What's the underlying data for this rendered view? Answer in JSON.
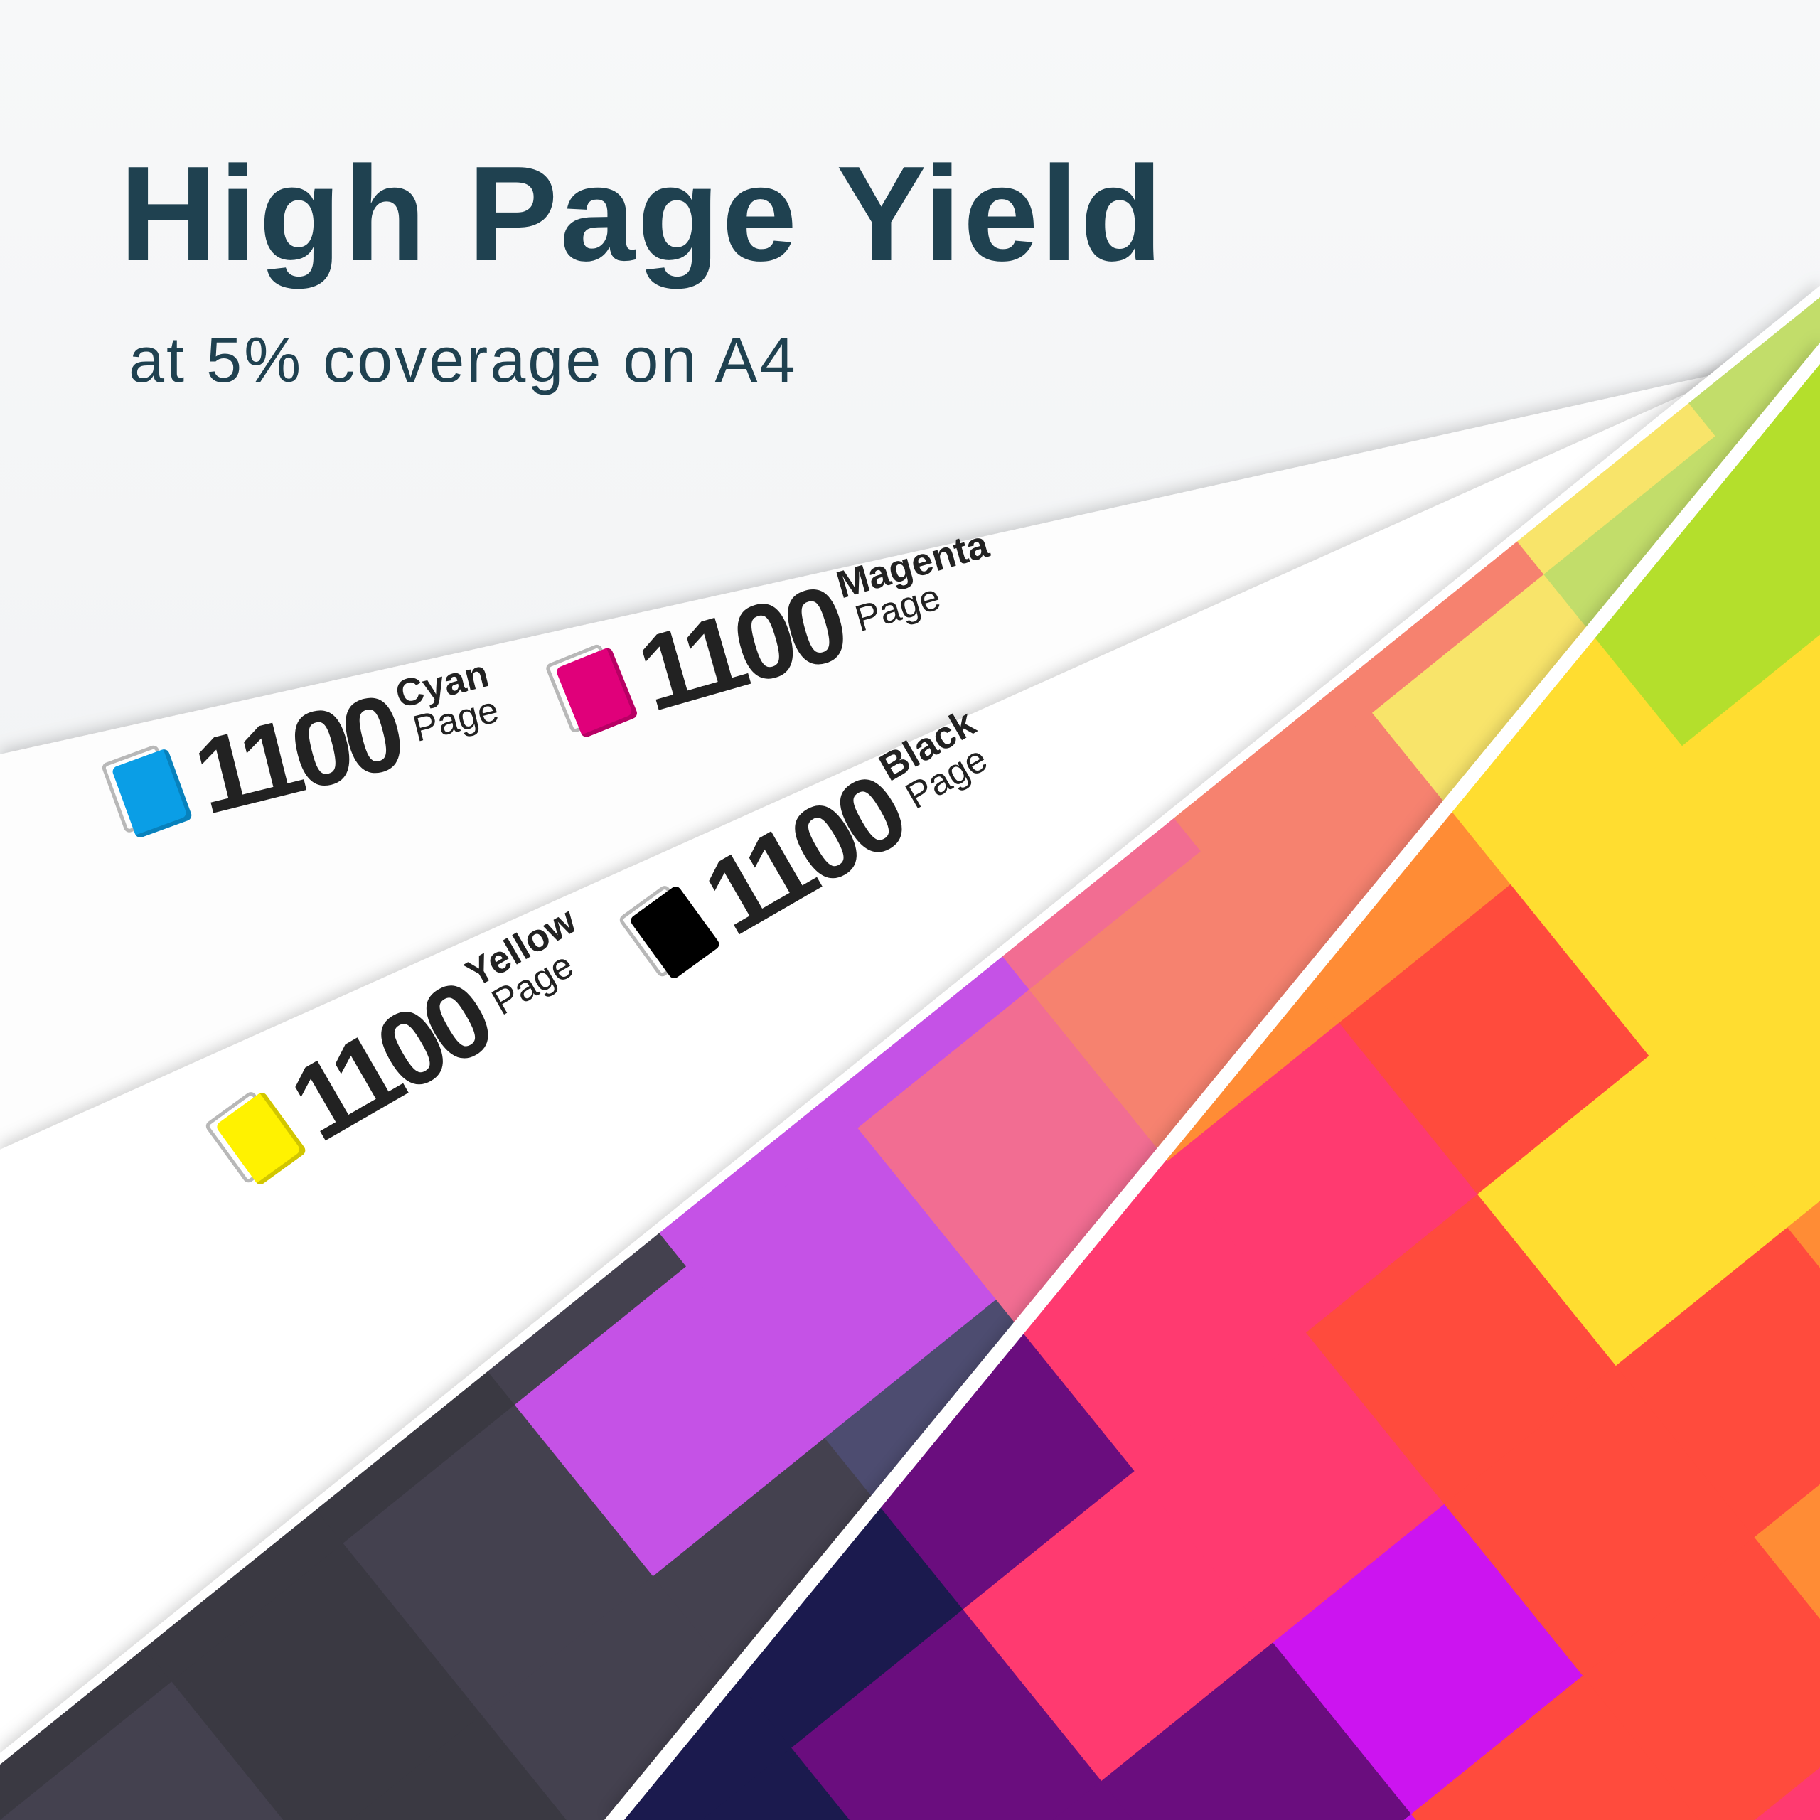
{
  "header": {
    "title": "High Page Yield",
    "subtitle": "at 5% coverage on A4"
  },
  "yields": [
    {
      "color_name": "Cyan",
      "count": "1100",
      "unit": "Page",
      "swatch": "#0a9ee6"
    },
    {
      "color_name": "Magenta",
      "count": "1100",
      "unit": "Page",
      "swatch": "#e0007a"
    },
    {
      "color_name": "Black",
      "count": "1100",
      "unit": "Page",
      "swatch": "#000000"
    },
    {
      "color_name": "Yellow",
      "count": "1100",
      "unit": "Page",
      "swatch": "#fff200"
    }
  ],
  "colors": {
    "title": "#1f4150",
    "background": "#eef0f2",
    "sheet_a_palette": [
      "#3a3942",
      "#44414f",
      "#4d4c70",
      "#c552e6",
      "#f26d92",
      "#f47a6e",
      "#f6826f",
      "#f8e46a",
      "#d3e15f",
      "#c2dd6a",
      "#8acb72"
    ],
    "sheet_b_palette": [
      "#05050c",
      "#0d0b24",
      "#1b1a4e",
      "#6a0d7e",
      "#cc14f0",
      "#ff3a70",
      "#ff4b3d",
      "#ff8c35",
      "#ffdd30",
      "#c8e426",
      "#b4df2c",
      "#5ec23a"
    ]
  }
}
